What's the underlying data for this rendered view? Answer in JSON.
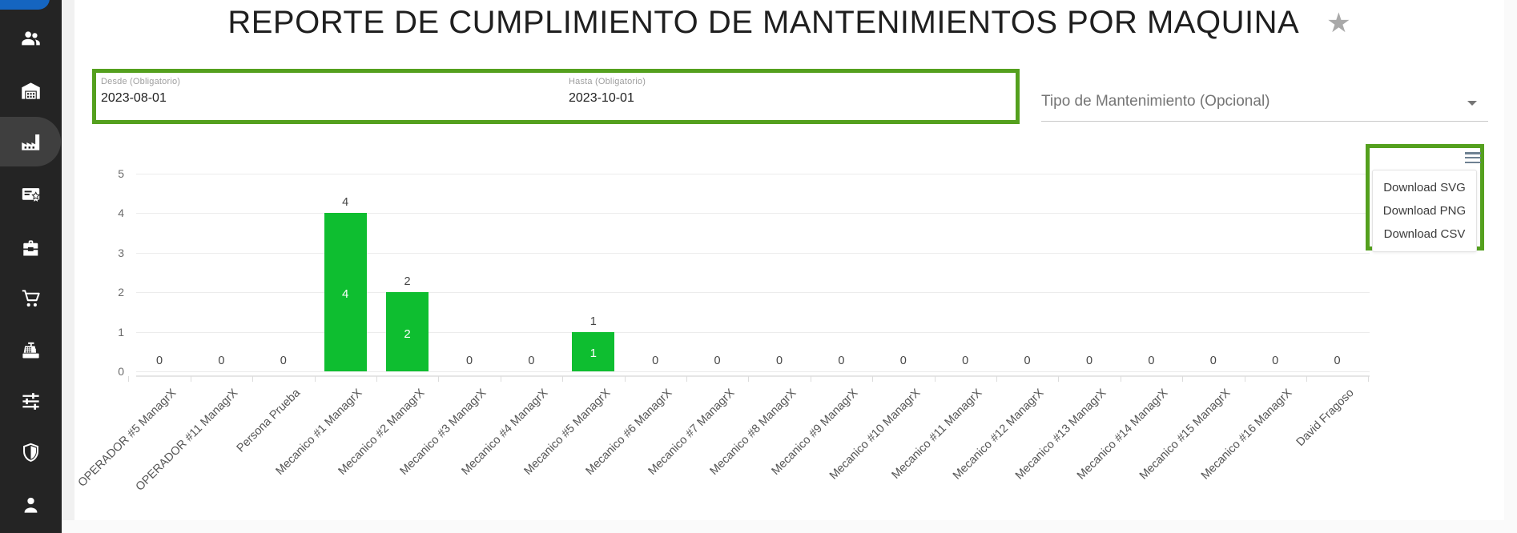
{
  "header": {
    "title": "REPORTE DE CUMPLIMIENTO DE MANTENIMIENTOS POR MAQUINA",
    "star_icon": "★"
  },
  "sidebar": {
    "icons": [
      "users-icon",
      "warehouse-icon",
      "factory-icon",
      "certificate-icon",
      "toolbox-icon",
      "cart-icon",
      "cash-register-icon",
      "tune-icon",
      "shield-icon",
      "profile-icon"
    ],
    "active_icon": "factory-icon"
  },
  "filters": {
    "desde": {
      "label": "Desde (Obligatorio)",
      "value": "2023-08-01"
    },
    "hasta": {
      "label": "Hasta (Obligatorio)",
      "value": "2023-10-01"
    },
    "tipo": {
      "label": "Tipo de Mantenimiento (Opcional)",
      "value": ""
    }
  },
  "download_menu": {
    "icon": "hamburger-menu-icon",
    "items": [
      "Download SVG",
      "Download PNG",
      "Download CSV"
    ]
  },
  "chart_data": {
    "type": "bar",
    "title": "",
    "xlabel": "",
    "ylabel": "",
    "categories": [
      "OPERADOR #5 ManagrX",
      "OPERADOR #11 ManagrX",
      "Persona Prueba",
      "Mecanico #1 ManagrX",
      "Mecanico #2 ManagrX",
      "Mecanico #3 ManagrX",
      "Mecanico #4 ManagrX",
      "Mecanico #5 ManagrX",
      "Mecanico #6 ManagrX",
      "Mecanico #7 ManagrX",
      "Mecanico #8 ManagrX",
      "Mecanico #9 ManagrX",
      "Mecanico #10 ManagrX",
      "Mecanico #11 ManagrX",
      "Mecanico #12 ManagrX",
      "Mecanico #13 ManagrX",
      "Mecanico #14 ManagrX",
      "Mecanico #15 ManagrX",
      "Mecanico #16 ManagrX",
      "David Fragoso"
    ],
    "values": [
      0,
      0,
      0,
      4,
      2,
      0,
      0,
      1,
      0,
      0,
      0,
      0,
      0,
      0,
      0,
      0,
      0,
      0,
      0,
      0
    ],
    "ylim": [
      0,
      5
    ],
    "yticks": [
      0,
      1,
      2,
      3,
      4,
      5
    ],
    "grid": true,
    "legend": "none",
    "data_labels": "above and inside bars",
    "bar_color": "#0ebe30",
    "annotation_color": "#54a01e"
  },
  "colors": {
    "sidebar_bg": "#242424",
    "accent_blue": "#1565c0",
    "bar_green": "#0ebe30",
    "annotation_green": "#54a01e"
  }
}
